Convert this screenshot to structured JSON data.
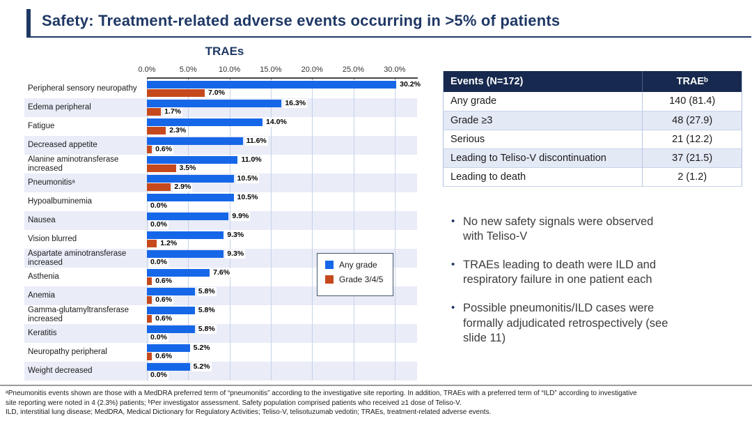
{
  "slide": {
    "title": "Safety: Treatment-related adverse events occurring in >5% of patients"
  },
  "chart_data": {
    "type": "bar",
    "orientation": "horizontal",
    "title": "TRAEs",
    "xlabel": "",
    "ylabel": "",
    "axis_ticks": [
      "0.0%",
      "5.0%",
      "10.0%",
      "15.0%",
      "20.0%",
      "25.0%",
      "30.0%"
    ],
    "axis_tick_values": [
      0,
      5,
      10,
      15,
      20,
      25,
      30
    ],
    "xlim": [
      0,
      32.7
    ],
    "grid": true,
    "legend_position": "inside-lower-right",
    "categories": [
      "Peripheral sensory neuropathy",
      "Edema peripheral",
      "Fatigue",
      "Decreased appetite",
      "Alanine aminotransferase increased",
      "Pneumonitisᵃ",
      "Hypoalbuminemia",
      "Nausea",
      "Vision blurred",
      "Aspartate aminotransferase increased",
      "Asthenia",
      "Anemia",
      "Gamma-glutamyltransferase increased",
      "Keratitis",
      "Neuropathy peripheral",
      "Weight decreased"
    ],
    "series": [
      {
        "name": "Any grade",
        "color": "#1667E8",
        "values": [
          30.2,
          16.3,
          14.0,
          11.6,
          11.0,
          10.5,
          10.5,
          9.9,
          9.3,
          9.3,
          7.6,
          5.8,
          5.8,
          5.8,
          5.2,
          5.2
        ]
      },
      {
        "name": "Grade 3/4/5",
        "color": "#C5491D",
        "values": [
          7.0,
          1.7,
          2.3,
          0.6,
          3.5,
          2.9,
          0.0,
          0.0,
          1.2,
          0.0,
          0.6,
          0.6,
          0.6,
          0.0,
          0.6,
          0.0
        ]
      }
    ]
  },
  "table": {
    "headers": [
      "Events (N=172)",
      "TRAEᵇ"
    ],
    "rows": [
      [
        "Any grade",
        "140 (81.4)"
      ],
      [
        "Grade ≥3",
        "48 (27.9)"
      ],
      [
        "Serious",
        "21 (12.2)"
      ],
      [
        "Leading to Teliso-V discontinuation",
        "37 (21.5)"
      ],
      [
        "Leading to death",
        "2 (1.2)"
      ]
    ]
  },
  "bullets": [
    [
      "No new safety signals were observed",
      "with Teliso-V"
    ],
    [
      "TRAEs leading to death were ILD and",
      "respiratory failure in one patient each"
    ],
    [
      "Possible pneumonitis/ILD cases were",
      "formally adjudicated retrospectively (see",
      "slide 11)"
    ]
  ],
  "footnotes": [
    "ᵃPneumonitis events shown are those with a MedDRA preferred term of “pneumonitis” according to the investigative site reporting. In addition, TRAEs with a preferred term of “ILD” according to investigative",
    "site reporting were noted in 4 (2.3%) patients; ᵇPer investigator assessment. Safety population comprised patients who received ≥1 dose of Teliso-V.",
    "ILD, interstitial lung disease; MedDRA, Medical Dictionary for Regulatory Activities; Teliso-V, telisotuzumab vedotin; TRAEs, treatment-related adverse events."
  ],
  "colors": {
    "navy": "#1F3864",
    "table_header_bg": "#17294E",
    "any_grade_blue": "#1667E8",
    "grade345_orange": "#C5491D",
    "stripe_lavender": "#EAEDF8",
    "table_alt_row": "#E4E9F6",
    "gridline": "#C6D1E8"
  }
}
